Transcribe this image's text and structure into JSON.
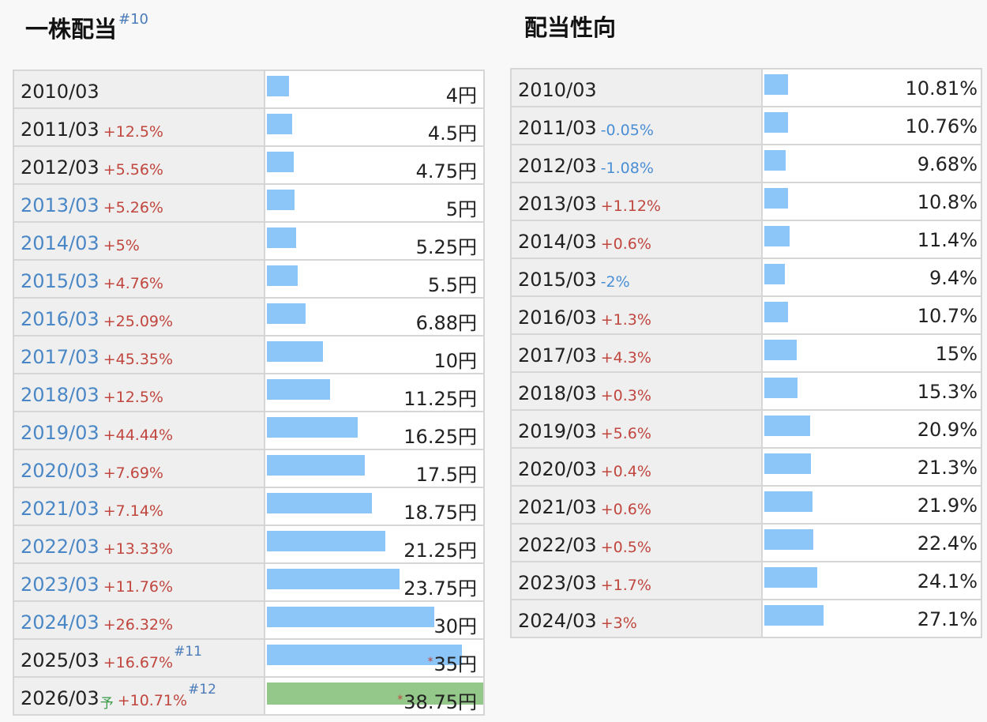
{
  "dividend": {
    "title": "一株配当",
    "title_ref": "#10",
    "max_value": 38.75,
    "rows": [
      {
        "year": "2010/03",
        "link": false,
        "change": "",
        "dir": "",
        "value": 4,
        "label": "4円",
        "forecast": false,
        "star": false,
        "ref": "",
        "yo": ""
      },
      {
        "year": "2011/03",
        "link": false,
        "change": "+12.5%",
        "dir": "up",
        "value": 4.5,
        "label": "4.5円",
        "forecast": false,
        "star": false,
        "ref": "",
        "yo": ""
      },
      {
        "year": "2012/03",
        "link": false,
        "change": "+5.56%",
        "dir": "up",
        "value": 4.75,
        "label": "4.75円",
        "forecast": false,
        "star": false,
        "ref": "",
        "yo": ""
      },
      {
        "year": "2013/03",
        "link": true,
        "change": "+5.26%",
        "dir": "up",
        "value": 5,
        "label": "5円",
        "forecast": false,
        "star": false,
        "ref": "",
        "yo": ""
      },
      {
        "year": "2014/03",
        "link": true,
        "change": "+5%",
        "dir": "up",
        "value": 5.25,
        "label": "5.25円",
        "forecast": false,
        "star": false,
        "ref": "",
        "yo": ""
      },
      {
        "year": "2015/03",
        "link": true,
        "change": "+4.76%",
        "dir": "up",
        "value": 5.5,
        "label": "5.5円",
        "forecast": false,
        "star": false,
        "ref": "",
        "yo": ""
      },
      {
        "year": "2016/03",
        "link": true,
        "change": "+25.09%",
        "dir": "up",
        "value": 6.88,
        "label": "6.88円",
        "forecast": false,
        "star": false,
        "ref": "",
        "yo": ""
      },
      {
        "year": "2017/03",
        "link": true,
        "change": "+45.35%",
        "dir": "up",
        "value": 10,
        "label": "10円",
        "forecast": false,
        "star": false,
        "ref": "",
        "yo": ""
      },
      {
        "year": "2018/03",
        "link": true,
        "change": "+12.5%",
        "dir": "up",
        "value": 11.25,
        "label": "11.25円",
        "forecast": false,
        "star": false,
        "ref": "",
        "yo": ""
      },
      {
        "year": "2019/03",
        "link": true,
        "change": "+44.44%",
        "dir": "up",
        "value": 16.25,
        "label": "16.25円",
        "forecast": false,
        "star": false,
        "ref": "",
        "yo": ""
      },
      {
        "year": "2020/03",
        "link": true,
        "change": "+7.69%",
        "dir": "up",
        "value": 17.5,
        "label": "17.5円",
        "forecast": false,
        "star": false,
        "ref": "",
        "yo": ""
      },
      {
        "year": "2021/03",
        "link": true,
        "change": "+7.14%",
        "dir": "up",
        "value": 18.75,
        "label": "18.75円",
        "forecast": false,
        "star": false,
        "ref": "",
        "yo": ""
      },
      {
        "year": "2022/03",
        "link": true,
        "change": "+13.33%",
        "dir": "up",
        "value": 21.25,
        "label": "21.25円",
        "forecast": false,
        "star": false,
        "ref": "",
        "yo": ""
      },
      {
        "year": "2023/03",
        "link": true,
        "change": "+11.76%",
        "dir": "up",
        "value": 23.75,
        "label": "23.75円",
        "forecast": false,
        "star": false,
        "ref": "",
        "yo": ""
      },
      {
        "year": "2024/03",
        "link": true,
        "change": "+26.32%",
        "dir": "up",
        "value": 30,
        "label": "30円",
        "forecast": false,
        "star": false,
        "ref": "",
        "yo": ""
      },
      {
        "year": "2025/03",
        "link": false,
        "change": "+16.67%",
        "dir": "up",
        "value": 35,
        "label": "35円",
        "forecast": false,
        "star": true,
        "ref": "#11",
        "yo": ""
      },
      {
        "year": "2026/03",
        "link": false,
        "change": "+10.71%",
        "dir": "up",
        "value": 38.75,
        "label": "38.75円",
        "forecast": true,
        "star": true,
        "ref": "#12",
        "yo": "予"
      }
    ]
  },
  "payout": {
    "title": "配当性向",
    "max_value": 55,
    "rows": [
      {
        "year": "2010/03",
        "change": "",
        "dir": "",
        "value": 10.81,
        "label": "10.81%"
      },
      {
        "year": "2011/03",
        "change": "-0.05%",
        "dir": "down",
        "value": 10.76,
        "label": "10.76%"
      },
      {
        "year": "2012/03",
        "change": "-1.08%",
        "dir": "down",
        "value": 9.68,
        "label": "9.68%"
      },
      {
        "year": "2013/03",
        "change": "+1.12%",
        "dir": "up",
        "value": 10.8,
        "label": "10.8%"
      },
      {
        "year": "2014/03",
        "change": "+0.6%",
        "dir": "up",
        "value": 11.4,
        "label": "11.4%"
      },
      {
        "year": "2015/03",
        "change": "-2%",
        "dir": "down",
        "value": 9.4,
        "label": "9.4%"
      },
      {
        "year": "2016/03",
        "change": "+1.3%",
        "dir": "up",
        "value": 10.7,
        "label": "10.7%"
      },
      {
        "year": "2017/03",
        "change": "+4.3%",
        "dir": "up",
        "value": 15,
        "label": "15%"
      },
      {
        "year": "2018/03",
        "change": "+0.3%",
        "dir": "up",
        "value": 15.3,
        "label": "15.3%"
      },
      {
        "year": "2019/03",
        "change": "+5.6%",
        "dir": "up",
        "value": 20.9,
        "label": "20.9%"
      },
      {
        "year": "2020/03",
        "change": "+0.4%",
        "dir": "up",
        "value": 21.3,
        "label": "21.3%"
      },
      {
        "year": "2021/03",
        "change": "+0.6%",
        "dir": "up",
        "value": 21.9,
        "label": "21.9%"
      },
      {
        "year": "2022/03",
        "change": "+0.5%",
        "dir": "up",
        "value": 22.4,
        "label": "22.4%"
      },
      {
        "year": "2023/03",
        "change": "+1.7%",
        "dir": "up",
        "value": 24.1,
        "label": "24.1%"
      },
      {
        "year": "2024/03",
        "change": "+3%",
        "dir": "up",
        "value": 27.1,
        "label": "27.1%"
      }
    ]
  }
}
